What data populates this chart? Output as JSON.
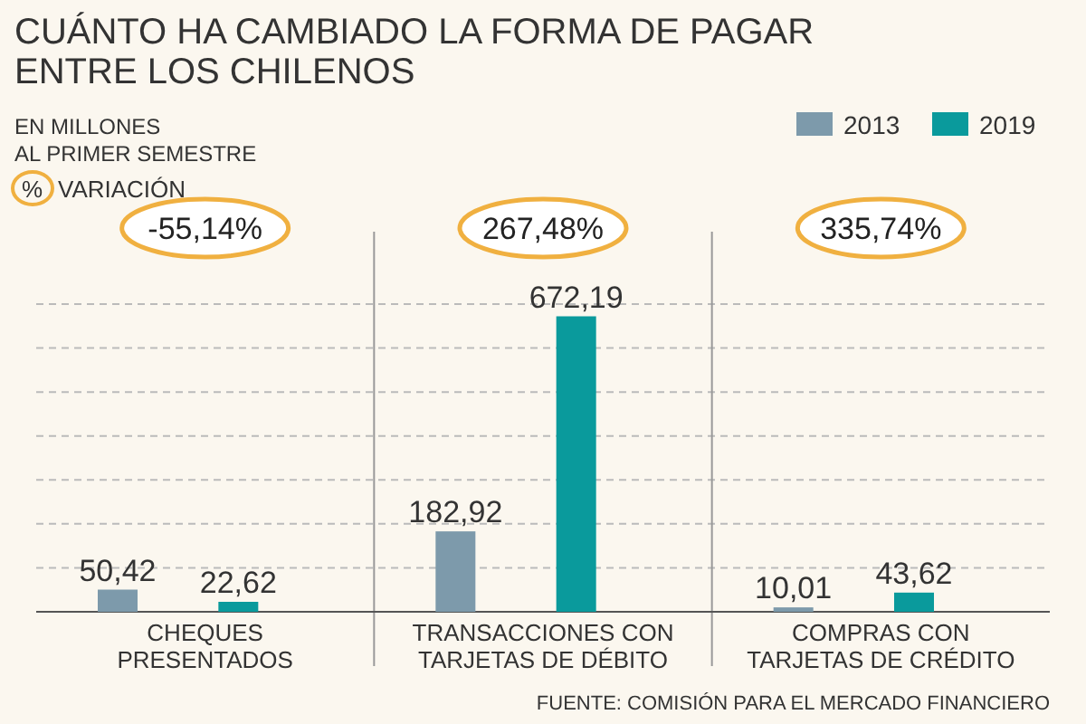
{
  "chart_data": {
    "type": "bar",
    "title": "CUÁNTO HA CAMBIADO LA FORMA DE PAGAR\nENTRE LOS CHILENOS",
    "subtitle": "EN MILLONES\nAL PRIMER SEMESTRE",
    "categories": [
      "CHEQUES\nPRESENTADOS",
      "TRANSACCIONES CON\nTARJETAS DE DÉBITO",
      "COMPRAS CON\nTARJETAS DE CRÉDITO"
    ],
    "series": [
      {
        "name": "2013",
        "color": "#7d9aab",
        "values": [
          50.42,
          182.92,
          10.01
        ],
        "value_labels": [
          "50,42",
          "182,92",
          "10,01"
        ]
      },
      {
        "name": "2019",
        "color": "#0a9a9c",
        "values": [
          22.62,
          672.19,
          43.62
        ],
        "value_labels": [
          "22,62",
          "672,19",
          "43,62"
        ]
      }
    ],
    "ylim": [
      0,
      700
    ],
    "yticks": [
      {
        "value": 0,
        "label": null
      },
      {
        "value": 100,
        "label": null
      },
      {
        "value": 200,
        "label": null
      },
      {
        "value": 300,
        "label": null
      },
      {
        "value": 400,
        "label": null
      },
      {
        "value": 500,
        "label": null
      },
      {
        "value": 600,
        "label": null
      },
      {
        "value": 700,
        "label": null
      }
    ],
    "tick_labels": "x",
    "grid": "y",
    "legend": "top right",
    "annotations": [
      "% VARIACIÓN",
      "-55,14%",
      "267,48%",
      "335,74%",
      "FUENTE: COMISIÓN PARA EL MERCADO FINANCIERO"
    ]
  }
}
